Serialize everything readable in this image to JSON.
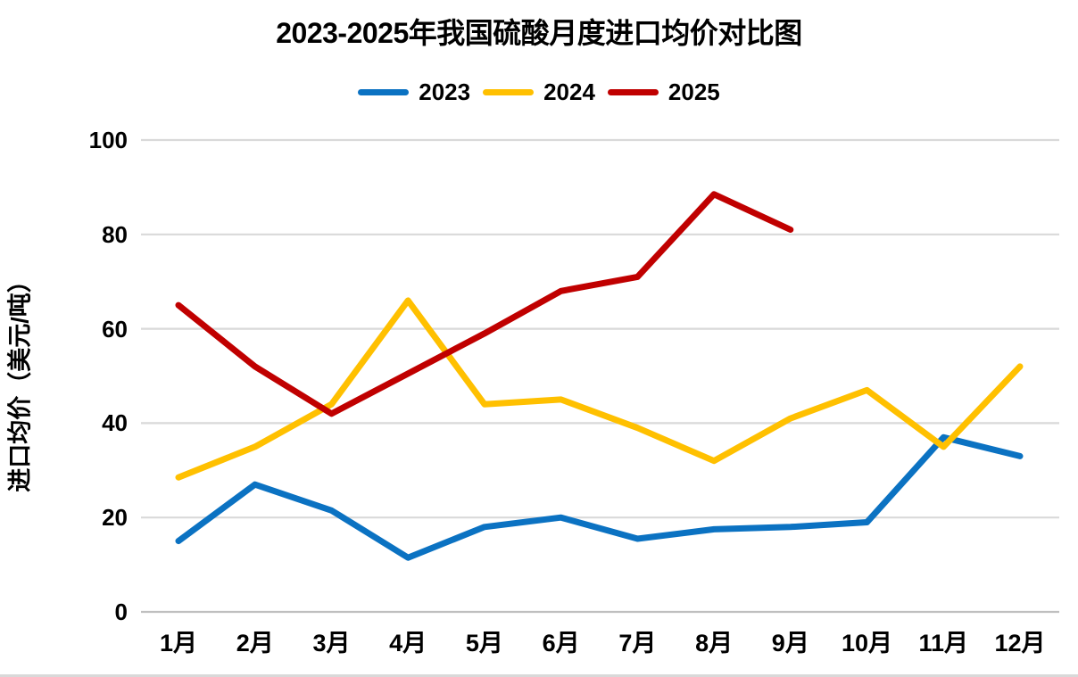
{
  "header": {
    "title": "2023-2025年我国硫酸月度进口均价对比图"
  },
  "chart_data": {
    "type": "line",
    "title": "2023-2025年我国硫酸月度进口均价对比图",
    "ylabel": "进口均价（美元/吨）",
    "xlabel": "",
    "categories": [
      "1月",
      "2月",
      "3月",
      "4月",
      "5月",
      "6月",
      "7月",
      "8月",
      "9月",
      "10月",
      "11月",
      "12月"
    ],
    "series": [
      {
        "name": "2023",
        "color": "#0b72c2",
        "values": [
          15,
          27,
          21.5,
          11.5,
          18,
          20,
          15.5,
          17.5,
          18,
          19,
          37,
          33
        ]
      },
      {
        "name": "2024",
        "color": "#ffc000",
        "values": [
          28.5,
          35,
          44,
          66,
          44,
          45,
          39,
          32,
          41,
          47,
          35,
          52
        ]
      },
      {
        "name": "2025",
        "color": "#c00000",
        "values": [
          65,
          52,
          42,
          50.5,
          59,
          68,
          71,
          88.5,
          81
        ]
      }
    ],
    "ylim": [
      0,
      100
    ],
    "yticks": [
      0,
      20,
      40,
      60,
      80,
      100
    ],
    "grid": true,
    "gridline_color": "#d9d9d9",
    "axis_line_color": "#bfbfbf",
    "legend_position": "top",
    "line_width": 7
  }
}
